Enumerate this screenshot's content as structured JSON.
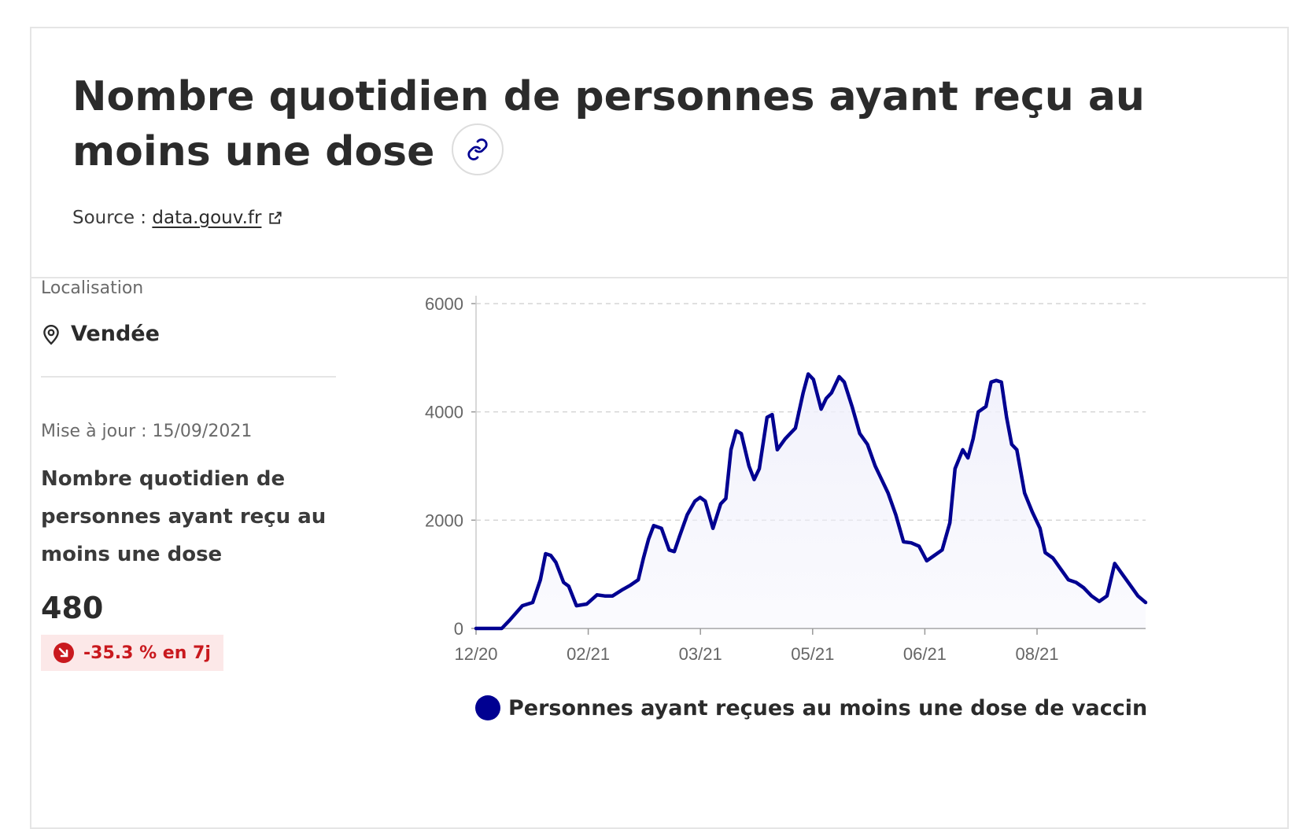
{
  "header": {
    "title": "Nombre quotidien de personnes ayant reçu au moins une dose",
    "link_icon": "link-icon",
    "source_label": "Source :",
    "source_link": "data.gouv.fr",
    "external_icon": "external-link-icon"
  },
  "panel": {
    "location_label": "Localisation",
    "location_icon": "map-pin-icon",
    "location_value": "Vendée",
    "updated": "Mise à jour : 15/09/2021",
    "indicator_title": "Nombre quotidien de personnes ayant reçu au moins une dose",
    "value": "480",
    "trend": "-35.3 % en 7j",
    "trend_icon": "arrow-down-right-icon"
  },
  "colors": {
    "line": "#000091",
    "area": "#f0f0fb",
    "trend_bg": "#fce8e8",
    "trend_text": "#c9191e"
  },
  "chart_data": {
    "type": "area",
    "title": "",
    "xlabel": "",
    "ylabel": "",
    "ylim": [
      0,
      6000
    ],
    "yticks": [
      "0",
      "2000",
      "4000",
      "6000"
    ],
    "xticks": [
      "12/20",
      "02/21",
      "03/21",
      "05/21",
      "06/21",
      "08/21"
    ],
    "grid": true,
    "legend_position": "bottom",
    "series": [
      {
        "name": "Personnes ayant reçues au moins une dose de vaccin",
        "x": [
          "2020-12-27",
          "2021-01-06",
          "2021-01-09",
          "2021-01-14",
          "2021-01-18",
          "2021-01-21",
          "2021-01-23",
          "2021-01-25",
          "2021-01-27",
          "2021-01-30",
          "2021-02-01",
          "2021-02-04",
          "2021-02-08",
          "2021-02-12",
          "2021-02-15",
          "2021-02-18",
          "2021-02-22",
          "2021-02-25",
          "2021-02-28",
          "2021-03-02",
          "2021-03-04",
          "2021-03-06",
          "2021-03-09",
          "2021-03-12",
          "2021-03-14",
          "2021-03-16",
          "2021-03-19",
          "2021-03-22",
          "2021-03-24",
          "2021-03-26",
          "2021-03-29",
          "2021-04-01",
          "2021-04-03",
          "2021-04-05",
          "2021-04-07",
          "2021-04-09",
          "2021-04-12",
          "2021-04-14",
          "2021-04-16",
          "2021-04-19",
          "2021-04-21",
          "2021-04-23",
          "2021-04-26",
          "2021-04-28",
          "2021-04-30",
          "2021-05-03",
          "2021-05-05",
          "2021-05-07",
          "2021-05-10",
          "2021-05-12",
          "2021-05-14",
          "2021-05-17",
          "2021-05-19",
          "2021-05-22",
          "2021-05-25",
          "2021-05-28",
          "2021-05-31",
          "2021-06-02",
          "2021-06-05",
          "2021-06-08",
          "2021-06-11",
          "2021-06-14",
          "2021-06-17",
          "2021-06-20",
          "2021-06-23",
          "2021-06-26",
          "2021-06-29",
          "2021-07-01",
          "2021-07-04",
          "2021-07-06",
          "2021-07-08",
          "2021-07-10",
          "2021-07-13",
          "2021-07-15",
          "2021-07-17",
          "2021-07-19",
          "2021-07-21",
          "2021-07-23",
          "2021-07-25",
          "2021-07-28",
          "2021-07-31",
          "2021-08-03",
          "2021-08-05",
          "2021-08-08",
          "2021-08-11",
          "2021-08-14",
          "2021-08-17",
          "2021-08-20",
          "2021-08-23",
          "2021-08-26",
          "2021-08-29",
          "2021-09-01",
          "2021-09-04",
          "2021-09-07",
          "2021-09-10",
          "2021-09-13"
        ],
        "values": [
          0,
          0,
          150,
          420,
          480,
          900,
          1380,
          1350,
          1220,
          850,
          780,
          420,
          450,
          620,
          600,
          600,
          720,
          800,
          900,
          1300,
          1650,
          1900,
          1850,
          1450,
          1420,
          1700,
          2100,
          2350,
          2420,
          2350,
          1850,
          2300,
          2400,
          3300,
          3650,
          3600,
          3000,
          2750,
          2950,
          3900,
          3950,
          3300,
          3500,
          3600,
          3700,
          4350,
          4700,
          4600,
          4050,
          4250,
          4350,
          4650,
          4550,
          4100,
          3600,
          3400,
          3000,
          2800,
          2500,
          2100,
          1600,
          1580,
          1520,
          1250,
          1350,
          1450,
          1950,
          2950,
          3300,
          3150,
          3500,
          4000,
          4100,
          4550,
          4580,
          4550,
          3900,
          3400,
          3300,
          2500,
          2150,
          1850,
          1400,
          1300,
          1100,
          900,
          850,
          750,
          600,
          500,
          600,
          1200,
          1000,
          800,
          600,
          480
        ]
      }
    ]
  }
}
